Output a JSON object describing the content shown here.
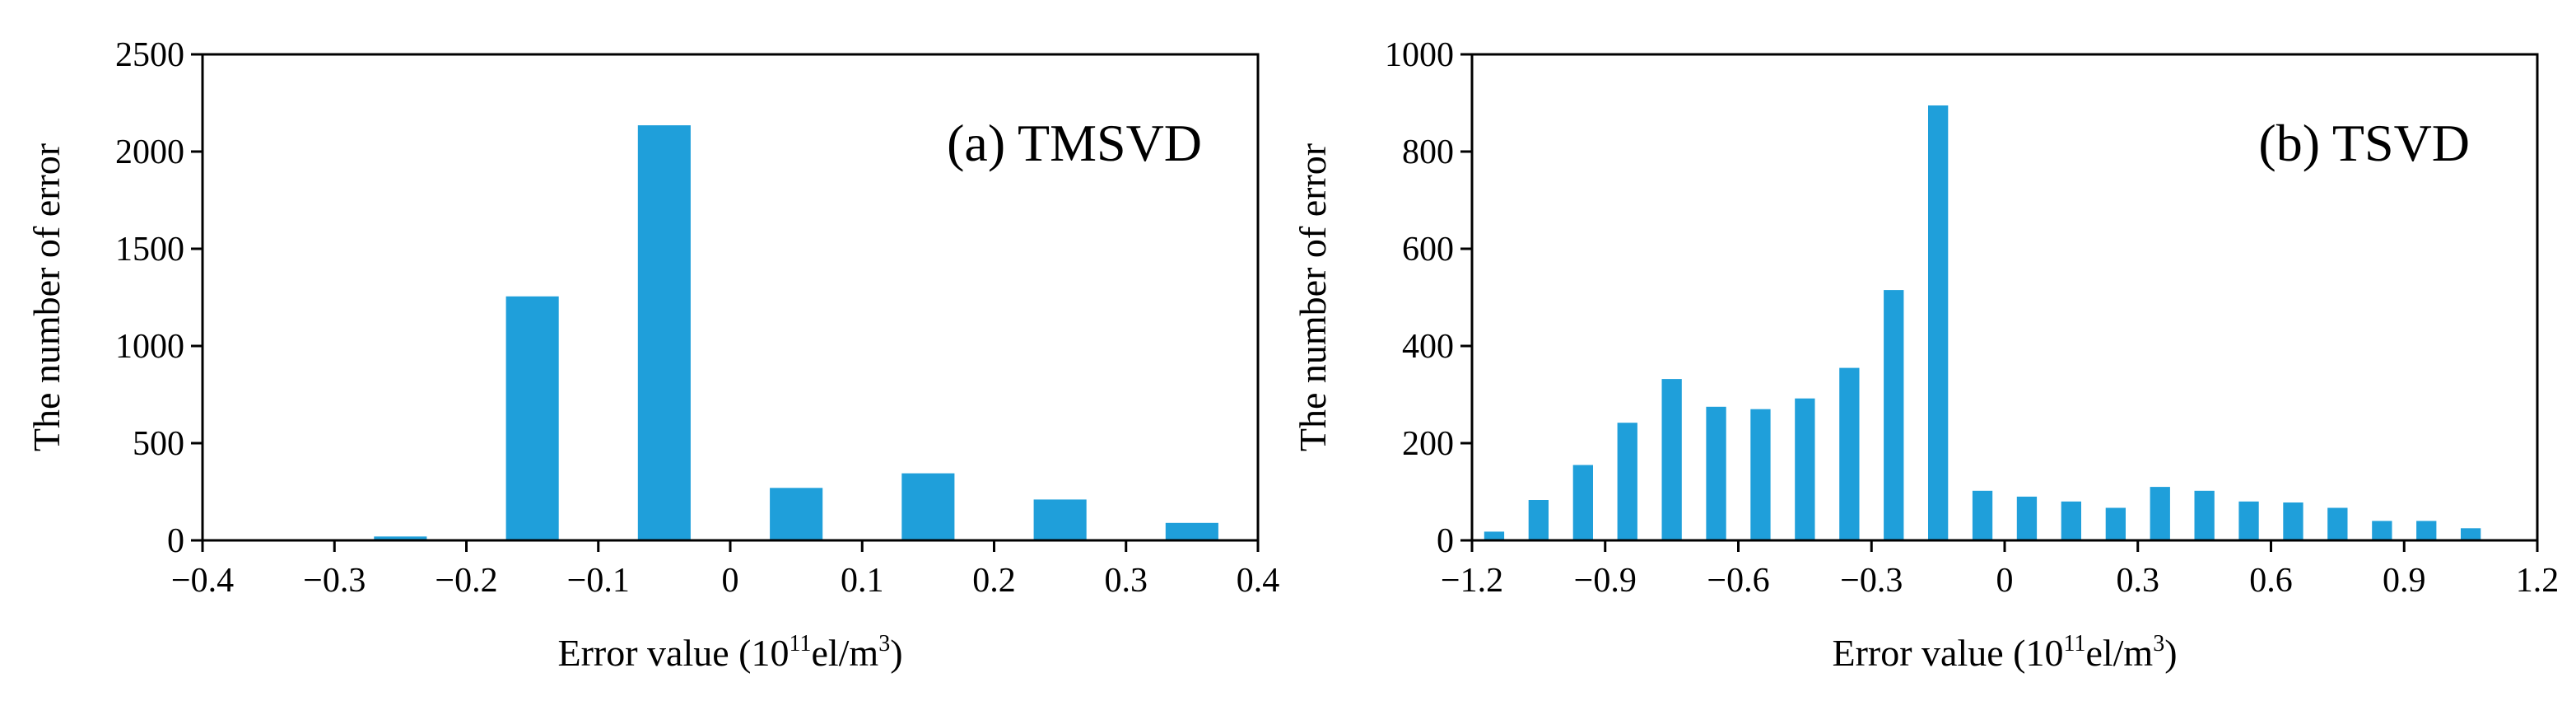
{
  "colors": {
    "bar": "#1f9fda",
    "axis": "#000000",
    "background": "#ffffff"
  },
  "chart_data": [
    {
      "type": "bar",
      "title": "(a) TMSVD",
      "xlabel": {
        "prefix": "Error value (10",
        "superscript": "11",
        "middle": "el/m",
        "superscript2": "3",
        "suffix": ")"
      },
      "ylabel": "The number of error",
      "xlim": [
        -0.4,
        0.4
      ],
      "ylim": [
        0,
        2500
      ],
      "bar_width": 0.04,
      "xticks": [
        -0.4,
        -0.3,
        -0.2,
        -0.1,
        0,
        0.1,
        0.2,
        0.3,
        0.4
      ],
      "xtick_labels": [
        "−0.4",
        "−0.3",
        "−0.2",
        "−0.1",
        "0",
        "0.1",
        "0.2",
        "0.3",
        "0.4"
      ],
      "yticks": [
        0,
        500,
        1000,
        1500,
        2000,
        2500
      ],
      "ytick_labels": [
        "0",
        "500",
        "1000",
        "1500",
        "2000",
        "2500"
      ],
      "x": [
        -0.35,
        -0.25,
        -0.15,
        -0.05,
        0.05,
        0.15,
        0.25,
        0.35
      ],
      "values": [
        0,
        20,
        1255,
        2135,
        270,
        345,
        210,
        90
      ]
    },
    {
      "type": "bar",
      "title": "(b) TSVD",
      "xlabel": {
        "prefix": "Error value (10",
        "superscript": "11",
        "middle": "el/m",
        "superscript2": "3",
        "suffix": ")"
      },
      "ylabel": "The number of error",
      "xlim": [
        -1.2,
        1.2
      ],
      "ylim": [
        0,
        1000
      ],
      "bar_width": 0.045,
      "xticks": [
        -1.2,
        -0.9,
        -0.6,
        -0.3,
        0,
        0.3,
        0.6,
        0.9,
        1.2
      ],
      "xtick_labels": [
        "−1.2",
        "−0.9",
        "−0.6",
        "−0.3",
        "0",
        "0.3",
        "0.6",
        "0.9",
        "1.2"
      ],
      "yticks": [
        0,
        200,
        400,
        600,
        800,
        1000
      ],
      "ytick_labels": [
        "0",
        "200",
        "400",
        "600",
        "800",
        "1000"
      ],
      "x": [
        -1.15,
        -1.05,
        -0.95,
        -0.85,
        -0.75,
        -0.65,
        -0.55,
        -0.45,
        -0.35,
        -0.25,
        -0.15,
        -0.05,
        0.05,
        0.15,
        0.25,
        0.35,
        0.45,
        0.55,
        0.65,
        0.75,
        0.85,
        0.95,
        1.05
      ],
      "values": [
        18,
        83,
        155,
        242,
        332,
        275,
        270,
        292,
        355,
        515,
        895,
        102,
        90,
        80,
        67,
        110,
        102,
        80,
        78,
        67,
        40,
        40,
        25
      ]
    }
  ]
}
